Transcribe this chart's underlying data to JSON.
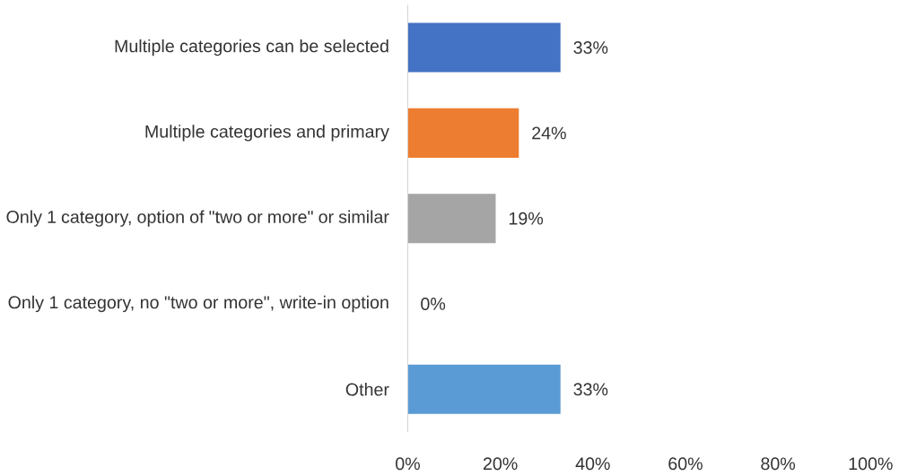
{
  "chart_data": {
    "type": "bar",
    "orientation": "horizontal",
    "categories": [
      "Multiple categories can be selected",
      "Multiple categories and primary",
      "Only 1 category, option of \"two or more\" or similar",
      "Only 1 category, no \"two or more\", write-in option",
      "Other"
    ],
    "values": [
      33,
      24,
      19,
      0,
      33
    ],
    "colors": [
      "#4472c4",
      "#ed7d31",
      "#a5a5a5",
      "#ffc000",
      "#5b9bd5"
    ],
    "value_labels": [
      "33%",
      "24%",
      "19%",
      "0%",
      "33%"
    ],
    "xlim": [
      0,
      100
    ],
    "xticks": [
      {
        "value": 0,
        "label": "0%"
      },
      {
        "value": 20,
        "label": "20%"
      },
      {
        "value": 40,
        "label": "40%"
      },
      {
        "value": 60,
        "label": "60%"
      },
      {
        "value": 80,
        "label": "80%"
      },
      {
        "value": 100,
        "label": "100%"
      }
    ],
    "grid": false
  }
}
